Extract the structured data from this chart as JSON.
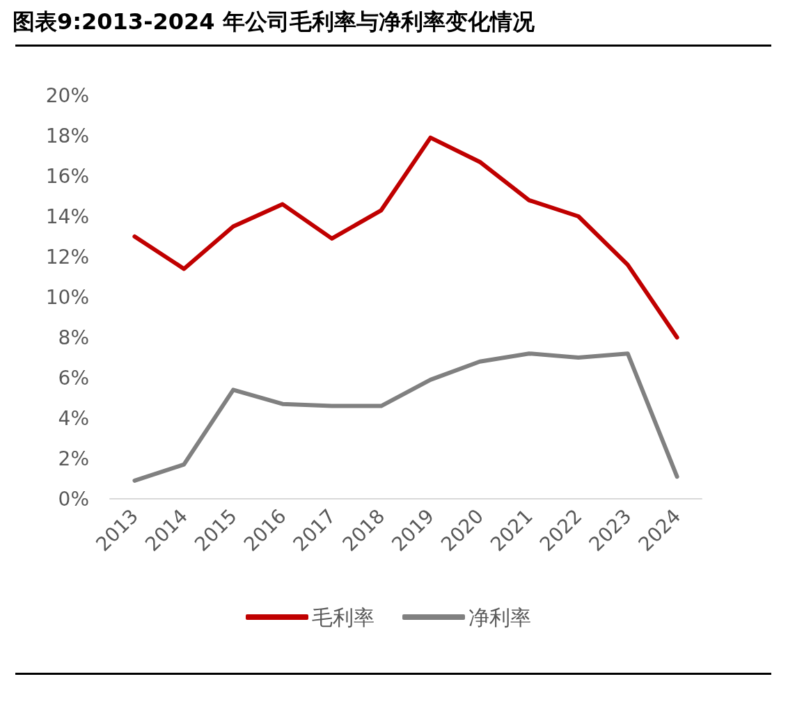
{
  "chart_data": {
    "type": "line",
    "title": "图表9:2013-2024 年公司毛利率与净利率变化情况",
    "categories": [
      "2013",
      "2014",
      "2015",
      "2016",
      "2017",
      "2018",
      "2019",
      "2020",
      "2021",
      "2022",
      "2023",
      "2024"
    ],
    "series": [
      {
        "name": "毛利率",
        "color": "#c00000",
        "values": [
          13.0,
          11.4,
          13.5,
          14.6,
          12.9,
          14.3,
          17.9,
          16.7,
          14.8,
          14.0,
          11.6,
          8.0
        ]
      },
      {
        "name": "净利率",
        "color": "#808080",
        "values": [
          0.9,
          1.7,
          5.4,
          4.7,
          4.6,
          4.6,
          5.9,
          6.8,
          7.2,
          7.0,
          7.2,
          1.1
        ]
      }
    ],
    "ylim": [
      0,
      20
    ],
    "yticks": [
      {
        "value": 0,
        "label": "0%"
      },
      {
        "value": 2,
        "label": "2%"
      },
      {
        "value": 4,
        "label": "4%"
      },
      {
        "value": 6,
        "label": "6%"
      },
      {
        "value": 8,
        "label": "8%"
      },
      {
        "value": 10,
        "label": "10%"
      },
      {
        "value": 12,
        "label": "12%"
      },
      {
        "value": 14,
        "label": "14%"
      },
      {
        "value": 16,
        "label": "16%"
      },
      {
        "value": 18,
        "label": "18%"
      },
      {
        "value": 20,
        "label": "20%"
      }
    ],
    "grid": false,
    "legend": "bottom",
    "marker": "none",
    "line_style": "solid"
  }
}
